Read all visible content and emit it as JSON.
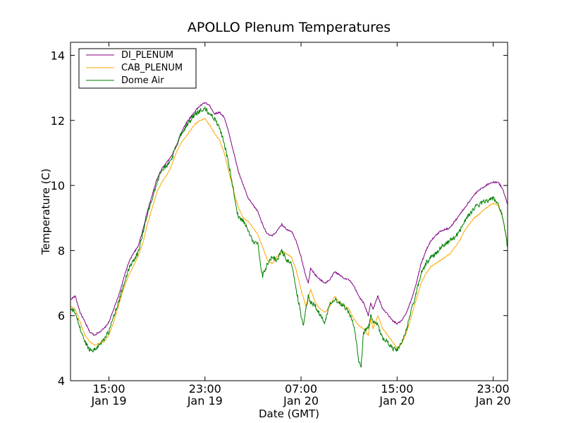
{
  "chart_data": {
    "type": "line",
    "title": "APOLLO Plenum Temperatures",
    "xlabel": "Date (GMT)",
    "ylabel": "Temperature (C)",
    "xlim_hours": [
      11.8,
      48.2
    ],
    "ylim": [
      4,
      14.4
    ],
    "yticks": [
      4,
      6,
      8,
      10,
      12,
      14
    ],
    "xticks": [
      {
        "hour": 15,
        "time": "15:00",
        "date": "Jan 19"
      },
      {
        "hour": 23,
        "time": "23:00",
        "date": "Jan 19"
      },
      {
        "hour": 31,
        "time": "07:00",
        "date": "Jan 20"
      },
      {
        "hour": 39,
        "time": "15:00",
        "date": "Jan 20"
      },
      {
        "hour": 47,
        "time": "23:00",
        "date": "Jan 20"
      }
    ],
    "legend_position": "top-left",
    "series": [
      {
        "name": "DI_PLENUM",
        "color": "#800080",
        "points": [
          [
            11.8,
            6.5
          ],
          [
            12.2,
            6.6
          ],
          [
            12.6,
            6.1
          ],
          [
            13.0,
            5.8
          ],
          [
            13.4,
            5.5
          ],
          [
            13.8,
            5.4
          ],
          [
            14.2,
            5.5
          ],
          [
            14.6,
            5.6
          ],
          [
            15.0,
            5.8
          ],
          [
            15.4,
            6.2
          ],
          [
            15.8,
            6.6
          ],
          [
            16.2,
            7.1
          ],
          [
            16.6,
            7.6
          ],
          [
            17.0,
            7.9
          ],
          [
            17.4,
            8.1
          ],
          [
            17.8,
            8.6
          ],
          [
            18.2,
            9.2
          ],
          [
            18.6,
            9.7
          ],
          [
            19.0,
            10.2
          ],
          [
            19.4,
            10.5
          ],
          [
            19.8,
            10.7
          ],
          [
            20.2,
            10.9
          ],
          [
            20.6,
            11.2
          ],
          [
            21.0,
            11.6
          ],
          [
            21.4,
            11.9
          ],
          [
            21.8,
            12.1
          ],
          [
            22.2,
            12.3
          ],
          [
            22.6,
            12.45
          ],
          [
            23.0,
            12.55
          ],
          [
            23.4,
            12.45
          ],
          [
            23.8,
            12.2
          ],
          [
            24.2,
            12.25
          ],
          [
            24.6,
            12.1
          ],
          [
            25.0,
            11.6
          ],
          [
            25.4,
            11.0
          ],
          [
            25.8,
            10.4
          ],
          [
            26.2,
            10.0
          ],
          [
            26.6,
            9.6
          ],
          [
            27.0,
            9.4
          ],
          [
            27.4,
            9.2
          ],
          [
            27.8,
            8.8
          ],
          [
            28.2,
            8.5
          ],
          [
            28.6,
            8.45
          ],
          [
            29.0,
            8.6
          ],
          [
            29.4,
            8.8
          ],
          [
            29.8,
            8.65
          ],
          [
            30.2,
            8.6
          ],
          [
            30.6,
            8.3
          ],
          [
            31.0,
            7.8
          ],
          [
            31.4,
            7.2
          ],
          [
            31.6,
            7.0
          ],
          [
            31.8,
            7.45
          ],
          [
            32.2,
            7.25
          ],
          [
            32.6,
            7.1
          ],
          [
            33.0,
            7.0
          ],
          [
            33.4,
            7.1
          ],
          [
            33.8,
            7.35
          ],
          [
            34.2,
            7.25
          ],
          [
            34.6,
            7.15
          ],
          [
            35.0,
            7.1
          ],
          [
            35.4,
            6.9
          ],
          [
            35.8,
            6.6
          ],
          [
            36.2,
            6.4
          ],
          [
            36.6,
            6.0
          ],
          [
            36.8,
            6.4
          ],
          [
            37.0,
            6.2
          ],
          [
            37.4,
            6.6
          ],
          [
            37.6,
            6.4
          ],
          [
            37.8,
            6.2
          ],
          [
            38.2,
            6.05
          ],
          [
            38.6,
            5.85
          ],
          [
            39.0,
            5.75
          ],
          [
            39.4,
            5.85
          ],
          [
            39.8,
            6.1
          ],
          [
            40.2,
            6.5
          ],
          [
            40.6,
            7.0
          ],
          [
            41.0,
            7.6
          ],
          [
            41.4,
            8.0
          ],
          [
            41.8,
            8.3
          ],
          [
            42.2,
            8.45
          ],
          [
            42.6,
            8.6
          ],
          [
            43.0,
            8.65
          ],
          [
            43.4,
            8.7
          ],
          [
            43.8,
            8.9
          ],
          [
            44.2,
            9.1
          ],
          [
            44.6,
            9.3
          ],
          [
            45.0,
            9.5
          ],
          [
            45.4,
            9.7
          ],
          [
            45.8,
            9.85
          ],
          [
            46.2,
            9.95
          ],
          [
            46.6,
            10.05
          ],
          [
            47.0,
            10.1
          ],
          [
            47.4,
            10.1
          ],
          [
            47.8,
            9.9
          ],
          [
            48.2,
            9.4
          ]
        ]
      },
      {
        "name": "CAB_PLENUM",
        "color": "#ffa500",
        "points": [
          [
            11.8,
            6.3
          ],
          [
            12.2,
            6.2
          ],
          [
            12.6,
            5.8
          ],
          [
            13.0,
            5.4
          ],
          [
            13.4,
            5.2
          ],
          [
            13.8,
            5.1
          ],
          [
            14.2,
            5.15
          ],
          [
            14.6,
            5.2
          ],
          [
            15.0,
            5.4
          ],
          [
            15.4,
            5.8
          ],
          [
            15.8,
            6.3
          ],
          [
            16.2,
            6.8
          ],
          [
            16.6,
            7.2
          ],
          [
            17.0,
            7.5
          ],
          [
            17.4,
            7.8
          ],
          [
            17.8,
            8.2
          ],
          [
            18.2,
            8.8
          ],
          [
            18.6,
            9.3
          ],
          [
            19.0,
            9.8
          ],
          [
            19.4,
            10.1
          ],
          [
            19.8,
            10.3
          ],
          [
            20.2,
            10.6
          ],
          [
            20.6,
            11.0
          ],
          [
            21.0,
            11.3
          ],
          [
            21.4,
            11.5
          ],
          [
            21.8,
            11.7
          ],
          [
            22.2,
            11.9
          ],
          [
            22.6,
            12.0
          ],
          [
            23.0,
            12.05
          ],
          [
            23.4,
            11.85
          ],
          [
            23.8,
            11.6
          ],
          [
            24.2,
            11.4
          ],
          [
            24.6,
            11.0
          ],
          [
            25.0,
            10.4
          ],
          [
            25.4,
            9.8
          ],
          [
            25.8,
            9.3
          ],
          [
            26.2,
            9.0
          ],
          [
            26.6,
            8.9
          ],
          [
            27.0,
            8.7
          ],
          [
            27.4,
            8.5
          ],
          [
            27.8,
            8.1
          ],
          [
            28.2,
            7.7
          ],
          [
            28.6,
            7.6
          ],
          [
            29.0,
            7.8
          ],
          [
            29.4,
            8.0
          ],
          [
            29.8,
            7.9
          ],
          [
            30.2,
            7.8
          ],
          [
            30.6,
            7.4
          ],
          [
            31.0,
            6.8
          ],
          [
            31.4,
            6.3
          ],
          [
            31.8,
            6.8
          ],
          [
            32.2,
            6.4
          ],
          [
            32.6,
            6.2
          ],
          [
            33.0,
            6.1
          ],
          [
            33.4,
            6.3
          ],
          [
            33.8,
            6.6
          ],
          [
            34.2,
            6.4
          ],
          [
            34.6,
            6.3
          ],
          [
            35.0,
            6.2
          ],
          [
            35.4,
            5.9
          ],
          [
            35.8,
            5.7
          ],
          [
            36.2,
            5.6
          ],
          [
            36.6,
            5.4
          ],
          [
            36.8,
            5.9
          ],
          [
            37.0,
            5.6
          ],
          [
            37.4,
            6.0
          ],
          [
            37.6,
            5.8
          ],
          [
            37.8,
            5.6
          ],
          [
            38.2,
            5.4
          ],
          [
            38.6,
            5.2
          ],
          [
            39.0,
            5.0
          ],
          [
            39.4,
            5.15
          ],
          [
            39.8,
            5.5
          ],
          [
            40.2,
            6.0
          ],
          [
            40.6,
            6.5
          ],
          [
            41.0,
            7.0
          ],
          [
            41.4,
            7.3
          ],
          [
            41.8,
            7.5
          ],
          [
            42.2,
            7.6
          ],
          [
            42.6,
            7.7
          ],
          [
            43.0,
            7.8
          ],
          [
            43.4,
            7.9
          ],
          [
            43.8,
            8.1
          ],
          [
            44.2,
            8.3
          ],
          [
            44.6,
            8.6
          ],
          [
            45.0,
            8.8
          ],
          [
            45.4,
            9.0
          ],
          [
            45.8,
            9.1
          ],
          [
            46.2,
            9.25
          ],
          [
            46.6,
            9.35
          ],
          [
            47.0,
            9.45
          ],
          [
            47.4,
            9.4
          ],
          [
            47.8,
            9.0
          ],
          [
            48.2,
            8.2
          ]
        ]
      },
      {
        "name": "Dome Air",
        "color": "#008000",
        "points": [
          [
            11.8,
            6.2
          ],
          [
            12.2,
            6.1
          ],
          [
            12.6,
            5.6
          ],
          [
            13.0,
            5.2
          ],
          [
            13.4,
            4.95
          ],
          [
            13.8,
            4.95
          ],
          [
            14.2,
            5.1
          ],
          [
            14.6,
            5.3
          ],
          [
            15.0,
            5.5
          ],
          [
            15.4,
            6.0
          ],
          [
            15.8,
            6.4
          ],
          [
            16.2,
            6.9
          ],
          [
            16.6,
            7.4
          ],
          [
            17.0,
            7.7
          ],
          [
            17.4,
            7.9
          ],
          [
            17.8,
            8.5
          ],
          [
            18.2,
            9.1
          ],
          [
            18.6,
            9.6
          ],
          [
            19.0,
            10.1
          ],
          [
            19.4,
            10.5
          ],
          [
            19.8,
            10.6
          ],
          [
            20.2,
            10.8
          ],
          [
            20.6,
            11.2
          ],
          [
            21.0,
            11.6
          ],
          [
            21.4,
            11.8
          ],
          [
            21.8,
            12.0
          ],
          [
            22.2,
            12.2
          ],
          [
            22.6,
            12.3
          ],
          [
            23.0,
            12.35
          ],
          [
            23.4,
            12.2
          ],
          [
            23.8,
            12.05
          ],
          [
            24.2,
            11.8
          ],
          [
            24.6,
            11.3
          ],
          [
            25.0,
            10.6
          ],
          [
            25.4,
            9.8
          ],
          [
            25.6,
            9.3
          ],
          [
            25.8,
            9.0
          ],
          [
            26.2,
            8.9
          ],
          [
            26.6,
            8.6
          ],
          [
            27.0,
            8.3
          ],
          [
            27.4,
            8.2
          ],
          [
            27.6,
            7.6
          ],
          [
            27.8,
            7.2
          ],
          [
            28.2,
            7.6
          ],
          [
            28.6,
            7.8
          ],
          [
            29.0,
            7.7
          ],
          [
            29.4,
            8.0
          ],
          [
            29.8,
            7.7
          ],
          [
            30.2,
            7.6
          ],
          [
            30.6,
            6.8
          ],
          [
            31.0,
            6.0
          ],
          [
            31.2,
            5.7
          ],
          [
            31.6,
            6.6
          ],
          [
            31.8,
            6.4
          ],
          [
            32.2,
            6.3
          ],
          [
            32.6,
            6.0
          ],
          [
            33.0,
            5.8
          ],
          [
            33.4,
            6.4
          ],
          [
            33.8,
            6.5
          ],
          [
            34.2,
            6.4
          ],
          [
            34.6,
            6.3
          ],
          [
            35.0,
            6.1
          ],
          [
            35.4,
            5.7
          ],
          [
            35.6,
            5.2
          ],
          [
            35.8,
            4.6
          ],
          [
            36.0,
            4.4
          ],
          [
            36.2,
            5.5
          ],
          [
            36.6,
            5.6
          ],
          [
            36.8,
            6.0
          ],
          [
            37.0,
            5.8
          ],
          [
            37.4,
            5.7
          ],
          [
            37.8,
            5.3
          ],
          [
            38.2,
            5.2
          ],
          [
            38.6,
            5.0
          ],
          [
            39.0,
            4.95
          ],
          [
            39.4,
            5.15
          ],
          [
            39.8,
            5.6
          ],
          [
            40.2,
            6.2
          ],
          [
            40.6,
            6.7
          ],
          [
            41.0,
            7.3
          ],
          [
            41.4,
            7.6
          ],
          [
            41.8,
            7.8
          ],
          [
            42.2,
            7.9
          ],
          [
            42.6,
            8.1
          ],
          [
            43.0,
            8.2
          ],
          [
            43.4,
            8.3
          ],
          [
            43.8,
            8.4
          ],
          [
            44.2,
            8.6
          ],
          [
            44.6,
            8.9
          ],
          [
            45.0,
            9.1
          ],
          [
            45.4,
            9.3
          ],
          [
            45.8,
            9.4
          ],
          [
            46.2,
            9.5
          ],
          [
            46.6,
            9.55
          ],
          [
            47.0,
            9.6
          ],
          [
            47.4,
            9.45
          ],
          [
            47.8,
            9.0
          ],
          [
            48.2,
            8.1
          ]
        ]
      }
    ]
  }
}
